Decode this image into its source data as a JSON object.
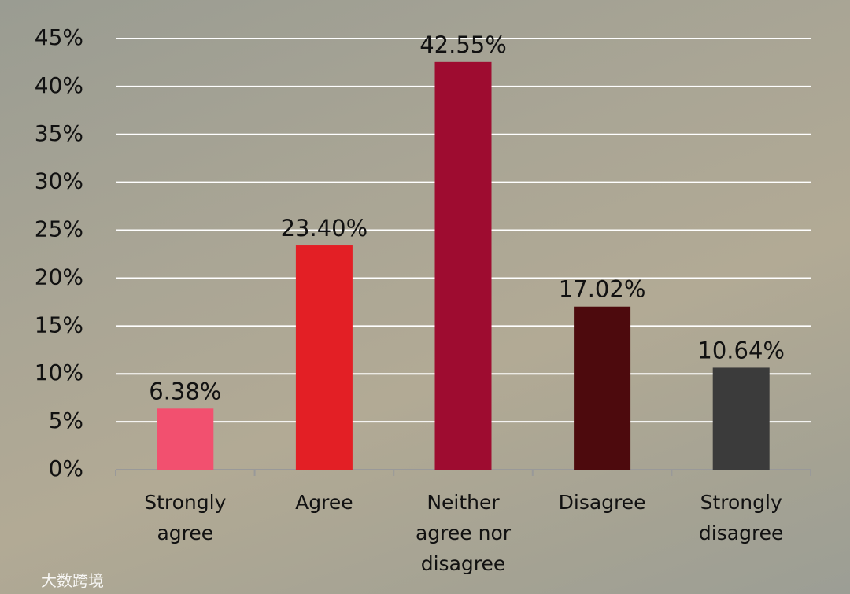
{
  "chart_data": {
    "type": "bar",
    "categories": [
      "Strongly agree",
      "Agree",
      "Neither agree nor disagree",
      "Disagree",
      "Strongly disagree"
    ],
    "values": [
      6.38,
      23.4,
      42.55,
      17.02,
      10.64
    ],
    "value_labels": [
      "6.38%",
      "23.40%",
      "42.55%",
      "17.02%",
      "10.64%"
    ],
    "colors": [
      "#f2506f",
      "#e31f25",
      "#9e0c30",
      "#4d0a0d",
      "#3b3b3b"
    ],
    "ylim": [
      0,
      45
    ],
    "yticks": [
      {
        "value": 0,
        "label": "0%"
      },
      {
        "value": 5,
        "label": "5%"
      },
      {
        "value": 10,
        "label": "10%"
      },
      {
        "value": 15,
        "label": "15%"
      },
      {
        "value": 20,
        "label": "20%"
      },
      {
        "value": 25,
        "label": "25%"
      },
      {
        "value": 30,
        "label": "30%"
      },
      {
        "value": 35,
        "label": "35%"
      },
      {
        "value": 40,
        "label": "40%"
      },
      {
        "value": 45,
        "label": "45%"
      }
    ],
    "grid": true,
    "watermark": "大数跨境"
  }
}
